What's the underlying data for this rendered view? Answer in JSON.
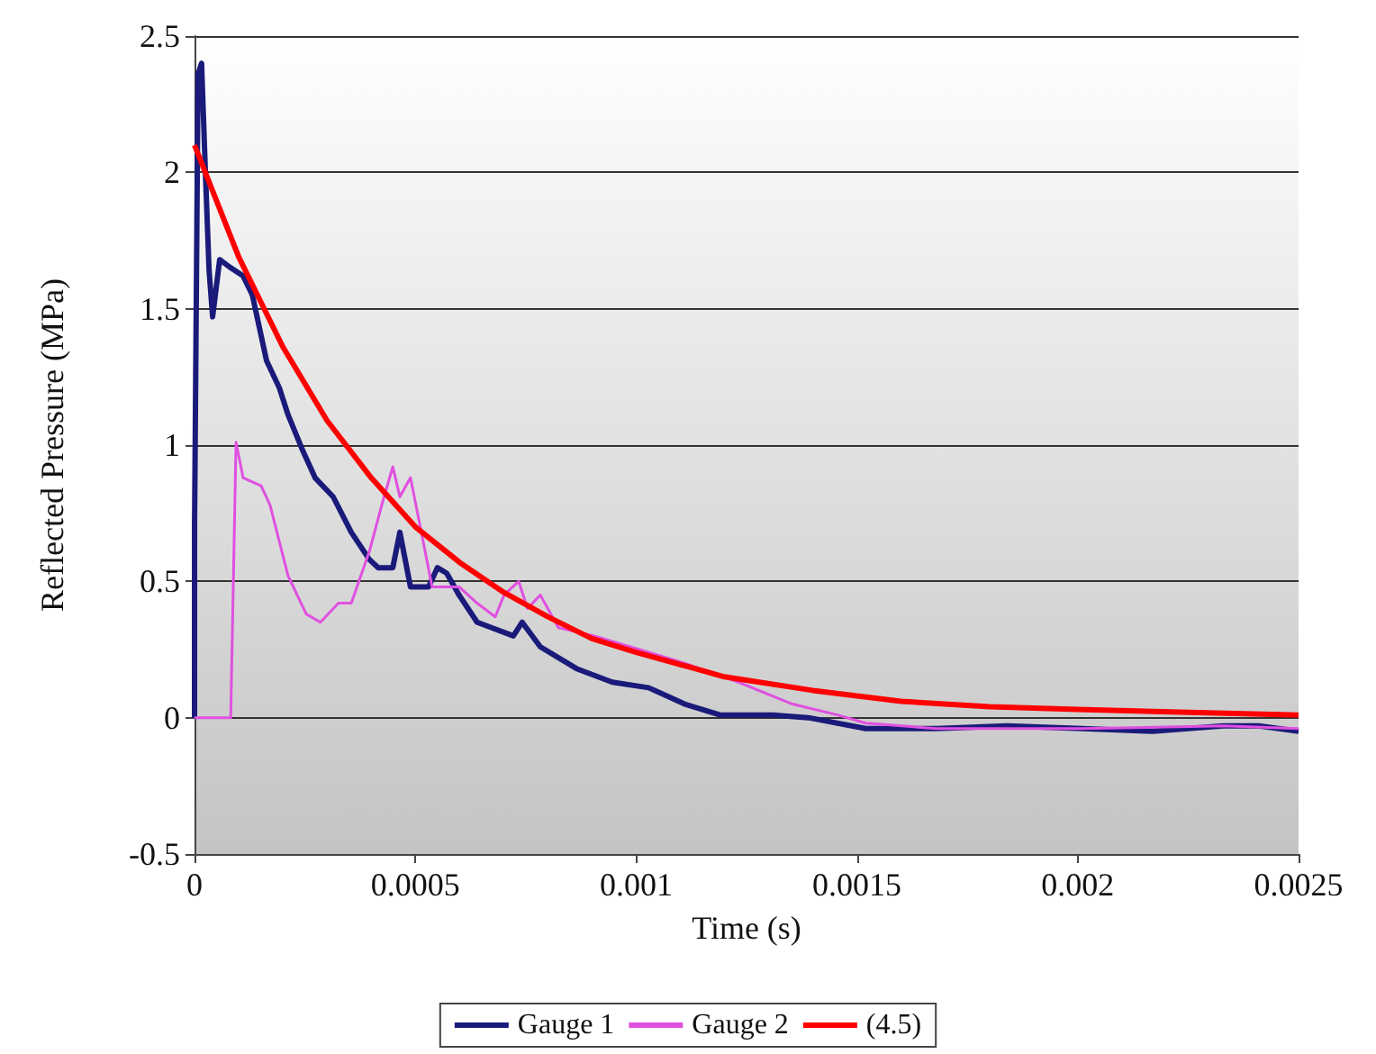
{
  "chart_data": {
    "type": "line",
    "xlabel": "Time (s)",
    "ylabel": "Reflected Pressure (MPa)",
    "xlim": [
      0,
      0.0025
    ],
    "xticks": [
      0,
      0.0005,
      0.001,
      0.0015,
      0.002,
      0.0025
    ],
    "ylim": [
      -0.5,
      2.5
    ],
    "yticks": [
      -0.5,
      0,
      0.5,
      1,
      1.5,
      2,
      2.5
    ],
    "grid": "y",
    "legend": "bottom",
    "marker": "none",
    "line_style": "solid",
    "series": [
      {
        "name": "Gauge 1",
        "color": "#1a1a7a",
        "x": [
          0,
          1e-07,
          8e-06,
          1.6e-05,
          2.4e-05,
          3.3e-05,
          4.1e-05,
          5.7e-05,
          8.2e-05,
          0.00011,
          0.000131,
          0.000163,
          0.000192,
          0.000212,
          0.000245,
          0.000273,
          0.000314,
          0.000355,
          0.000396,
          0.000416,
          0.000449,
          0.000465,
          0.000489,
          0.00053,
          0.00055,
          0.000571,
          0.000599,
          0.00064,
          0.000722,
          0.000742,
          0.000783,
          0.000865,
          0.000946,
          0.001028,
          0.00111,
          0.00119,
          0.00131,
          0.00139,
          0.00152,
          0.00168,
          0.00184,
          0.00201,
          0.00217,
          0.00233,
          0.00241,
          0.0025
        ],
        "values": [
          0,
          0.71,
          2.36,
          2.4,
          2.03,
          1.64,
          1.47,
          1.68,
          1.65,
          1.62,
          1.55,
          1.31,
          1.21,
          1.11,
          0.98,
          0.88,
          0.81,
          0.68,
          0.58,
          0.55,
          0.55,
          0.68,
          0.48,
          0.48,
          0.55,
          0.53,
          0.45,
          0.35,
          0.3,
          0.35,
          0.26,
          0.18,
          0.13,
          0.11,
          0.05,
          0.01,
          0.01,
          0,
          -0.04,
          -0.04,
          -0.03,
          -0.04,
          -0.05,
          -0.03,
          -0.03,
          -0.05
        ]
      },
      {
        "name": "Gauge 2",
        "color": "#e050e0",
        "x": [
          0,
          8.2e-05,
          9.4e-05,
          0.00011,
          0.000151,
          0.000171,
          0.000212,
          0.000253,
          0.000285,
          0.000326,
          0.000355,
          0.000396,
          0.000424,
          0.000449,
          0.000465,
          0.000489,
          0.00051,
          0.000538,
          0.000599,
          0.00064,
          0.000681,
          0.000701,
          0.000734,
          0.000754,
          0.000783,
          0.000824,
          0.000905,
          0.001007,
          0.00111,
          0.001232,
          0.001354,
          0.001456,
          0.00152,
          0.00168,
          0.00201,
          0.00233,
          0.0025
        ],
        "values": [
          0,
          0,
          1.01,
          0.88,
          0.85,
          0.78,
          0.52,
          0.38,
          0.35,
          0.42,
          0.42,
          0.61,
          0.78,
          0.92,
          0.81,
          0.88,
          0.71,
          0.48,
          0.48,
          0.42,
          0.37,
          0.45,
          0.5,
          0.4,
          0.45,
          0.33,
          0.3,
          0.25,
          0.2,
          0.13,
          0.05,
          0.01,
          -0.02,
          -0.04,
          -0.04,
          -0.03,
          -0.04
        ]
      },
      {
        "name": "(4.5)",
        "color": "#ff0000",
        "x": [
          0,
          0.0001,
          0.0002,
          0.0003,
          0.0004,
          0.0005,
          0.0006,
          0.0007,
          0.0008,
          0.0009,
          0.001,
          0.0012,
          0.0014,
          0.0016,
          0.0018,
          0.002,
          0.0025
        ],
        "values": [
          2.1,
          1.69,
          1.36,
          1.09,
          0.88,
          0.7,
          0.57,
          0.46,
          0.37,
          0.29,
          0.24,
          0.15,
          0.1,
          0.06,
          0.04,
          0.03,
          0.01
        ]
      }
    ]
  }
}
